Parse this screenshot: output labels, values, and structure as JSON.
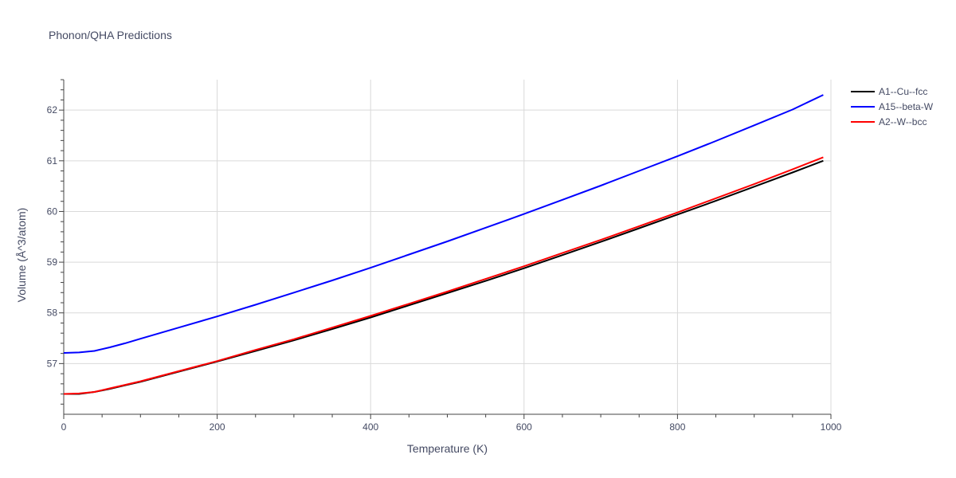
{
  "chart_data": {
    "type": "line",
    "title": "Phonon/QHA Predictions",
    "xlabel": "Temperature (K)",
    "ylabel": "Volume (Å^3/atom)",
    "xlim": [
      0,
      1000
    ],
    "ylim": [
      56.0,
      62.6
    ],
    "xticks": [
      0,
      200,
      400,
      600,
      800,
      1000
    ],
    "yticks": [
      57,
      58,
      59,
      60,
      61,
      62
    ],
    "grid": true,
    "legend_position": "top-right",
    "series": [
      {
        "name": "A1--Cu--fcc",
        "color": "#000000",
        "x": [
          0,
          20,
          40,
          60,
          80,
          100,
          150,
          200,
          250,
          300,
          350,
          400,
          450,
          500,
          550,
          600,
          650,
          700,
          750,
          800,
          850,
          900,
          950,
          990
        ],
        "y": [
          56.4,
          56.4,
          56.44,
          56.5,
          56.57,
          56.64,
          56.84,
          57.04,
          57.25,
          57.46,
          57.68,
          57.91,
          58.15,
          58.39,
          58.63,
          58.88,
          59.14,
          59.4,
          59.67,
          59.94,
          60.21,
          60.49,
          60.77,
          61.0
        ]
      },
      {
        "name": "A15--beta-W",
        "color": "#0000ff",
        "x": [
          0,
          20,
          40,
          60,
          80,
          100,
          150,
          200,
          250,
          300,
          350,
          400,
          450,
          500,
          550,
          600,
          650,
          700,
          750,
          800,
          850,
          900,
          950,
          990
        ],
        "y": [
          57.21,
          57.22,
          57.25,
          57.32,
          57.4,
          57.49,
          57.71,
          57.93,
          58.16,
          58.4,
          58.64,
          58.89,
          59.15,
          59.41,
          59.68,
          59.95,
          60.23,
          60.51,
          60.8,
          61.09,
          61.39,
          61.7,
          62.01,
          62.3
        ]
      },
      {
        "name": "A2--W--bcc",
        "color": "#ff0000",
        "x": [
          0,
          20,
          40,
          60,
          80,
          100,
          150,
          200,
          250,
          300,
          350,
          400,
          450,
          500,
          550,
          600,
          650,
          700,
          750,
          800,
          850,
          900,
          950,
          990
        ],
        "y": [
          56.4,
          56.41,
          56.44,
          56.51,
          56.58,
          56.65,
          56.85,
          57.05,
          57.27,
          57.48,
          57.71,
          57.94,
          58.18,
          58.42,
          58.67,
          58.92,
          59.18,
          59.44,
          59.71,
          59.98,
          60.26,
          60.54,
          60.83,
          61.07
        ]
      }
    ]
  }
}
